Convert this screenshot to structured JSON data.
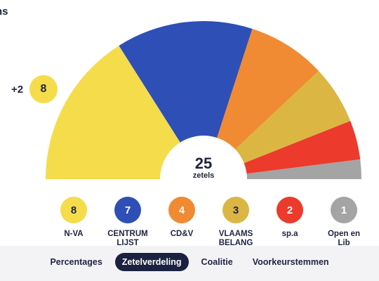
{
  "header": {
    "clipped_label": "ns"
  },
  "chart_data": {
    "type": "pie",
    "title": "",
    "total_seats": 25,
    "total_label": "zetels",
    "series": [
      {
        "name": "N-VA",
        "value": 8,
        "color": "#f5dc4b",
        "text_color": "#1e2340"
      },
      {
        "name": "CENTRUM\nLIJST",
        "value": 7,
        "color": "#2e4fb6",
        "text_color": "#ffffff"
      },
      {
        "name": "CD&V",
        "value": 4,
        "color": "#f08a33",
        "text_color": "#ffffff"
      },
      {
        "name": "VLAAMS\nBELANG",
        "value": 3,
        "color": "#dbb643",
        "text_color": "#1e2340"
      },
      {
        "name": "sp.a",
        "value": 2,
        "color": "#ec3a2c",
        "text_color": "#ffffff"
      },
      {
        "name": "Open en\nLib",
        "value": 1,
        "color": "#a4a4a4",
        "text_color": "#ffffff"
      }
    ]
  },
  "highlight": {
    "delta": "+2",
    "seats": "8",
    "color": "#f5dc4b"
  },
  "tabs": [
    {
      "label": "Percentages",
      "active": false
    },
    {
      "label": "Zetelverdeling",
      "active": true
    },
    {
      "label": "Coalitie",
      "active": false
    },
    {
      "label": "Voorkeurstemmen",
      "active": false
    }
  ]
}
